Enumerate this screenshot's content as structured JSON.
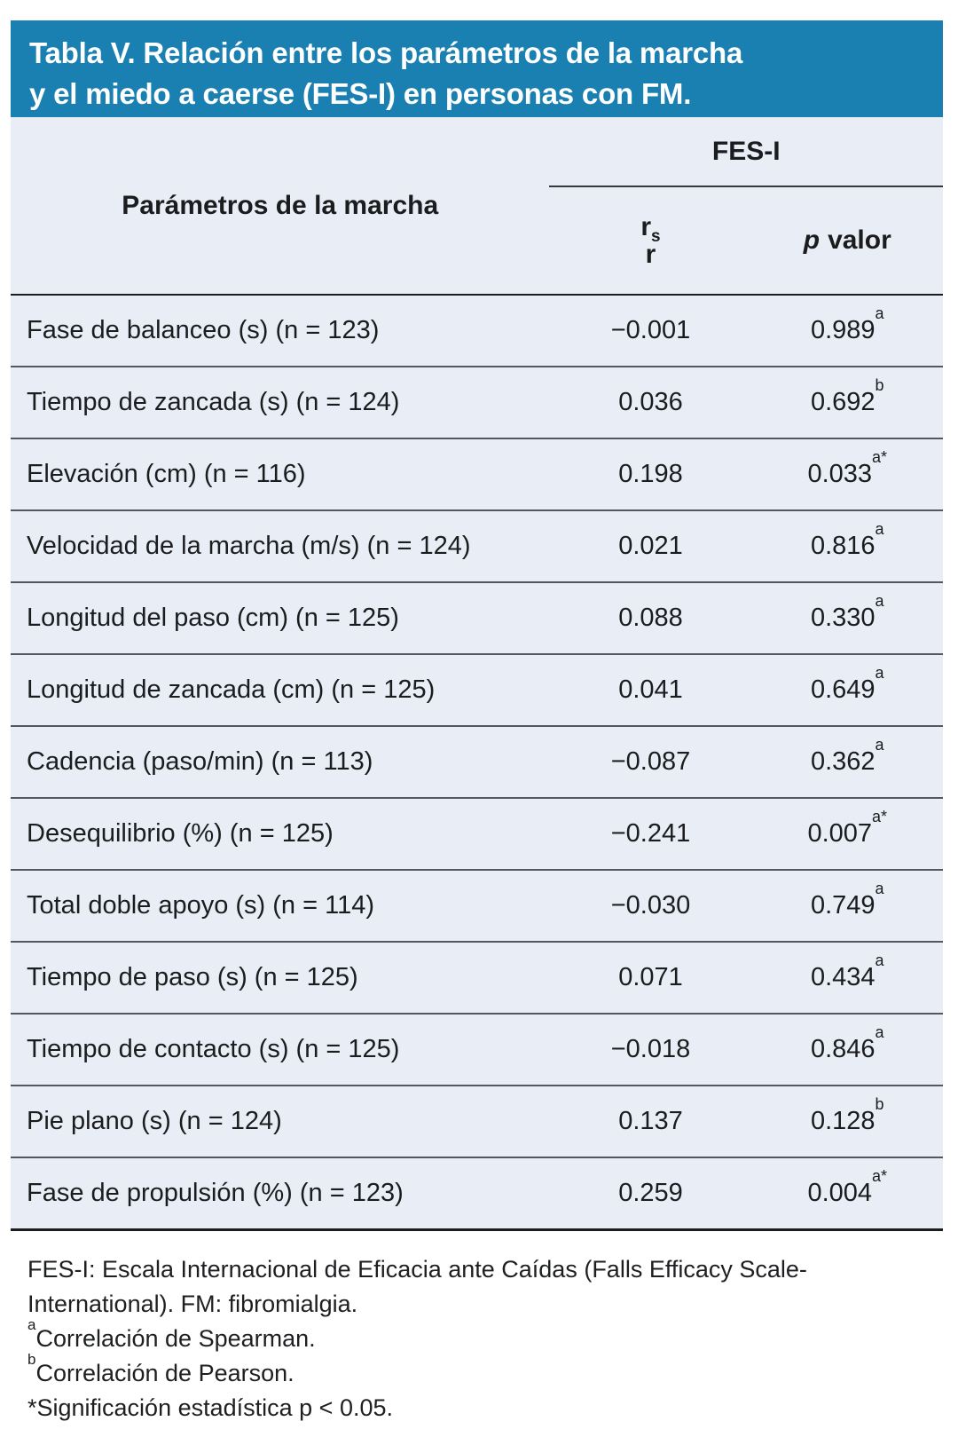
{
  "colors": {
    "banner": "#1A80B2",
    "panel": "#E9EDF6",
    "text": "#1B1C1E",
    "row_line": "#53585F",
    "strong_line": "#1A1C1F"
  },
  "banner": {
    "title_line1": "Tabla V. Relación entre los parámetros de la marcha",
    "title_line2": "y el miedo a caerse (FES-I) en personas con FM."
  },
  "table": {
    "col1_header": "Parámetros de la marcha",
    "group_header": "FES-I",
    "col2_header": {
      "base": "r",
      "sub": "s",
      "line2": "r"
    },
    "col3_header": {
      "italic": "p",
      "rest": "valor"
    },
    "rows": [
      {
        "param": "Fase de balanceo (s) (n = 123)",
        "rs": "−0.001",
        "p": "0.989",
        "p_sup": "a"
      },
      {
        "param": "Tiempo de zancada (s) (n = 124)",
        "rs": "0.036",
        "p": "0.692",
        "p_sup": "b"
      },
      {
        "param": "Elevación (cm) (n = 116)",
        "rs": "0.198",
        "p": "0.033",
        "p_sup": "a*"
      },
      {
        "param": "Velocidad de la marcha (m/s) (n = 124)",
        "rs": "0.021",
        "p": "0.816",
        "p_sup": "a"
      },
      {
        "param": "Longitud del paso (cm) (n = 125)",
        "rs": "0.088",
        "p": "0.330",
        "p_sup": "a"
      },
      {
        "param": "Longitud de zancada (cm) (n = 125)",
        "rs": "0.041",
        "p": "0.649",
        "p_sup": "a"
      },
      {
        "param": "Cadencia (paso/min) (n = 113)",
        "rs": "−0.087",
        "p": "0.362",
        "p_sup": "a"
      },
      {
        "param": "Desequilibrio (%) (n = 125)",
        "rs": "−0.241",
        "p": "0.007",
        "p_sup": "a*"
      },
      {
        "param": "Total doble apoyo (s) (n = 114)",
        "rs": "−0.030",
        "p": "0.749",
        "p_sup": "a"
      },
      {
        "param": "Tiempo de paso (s) (n = 125)",
        "rs": "0.071",
        "p": "0.434",
        "p_sup": "a"
      },
      {
        "param": "Tiempo de contacto (s) (n = 125)",
        "rs": "−0.018",
        "p": "0.846",
        "p_sup": "a"
      },
      {
        "param": "Pie plano (s) (n = 124)",
        "rs": "0.137",
        "p": "0.128",
        "p_sup": "b"
      },
      {
        "param": "Fase de propulsión (%) (n = 123)",
        "rs": "0.259",
        "p": "0.004",
        "p_sup": "a*"
      }
    ]
  },
  "footnotes": [
    {
      "sup": "",
      "text": "FES-I: Escala Internacional de Eficacia ante Caídas (Falls Efficacy Scale-International). FM: fibromialgia."
    },
    {
      "sup": "a",
      "text": "Correlación de Spearman."
    },
    {
      "sup": "b",
      "text": "Correlación de Pearson."
    },
    {
      "sup": "",
      "text": "*Significación estadística p < 0.05."
    }
  ]
}
